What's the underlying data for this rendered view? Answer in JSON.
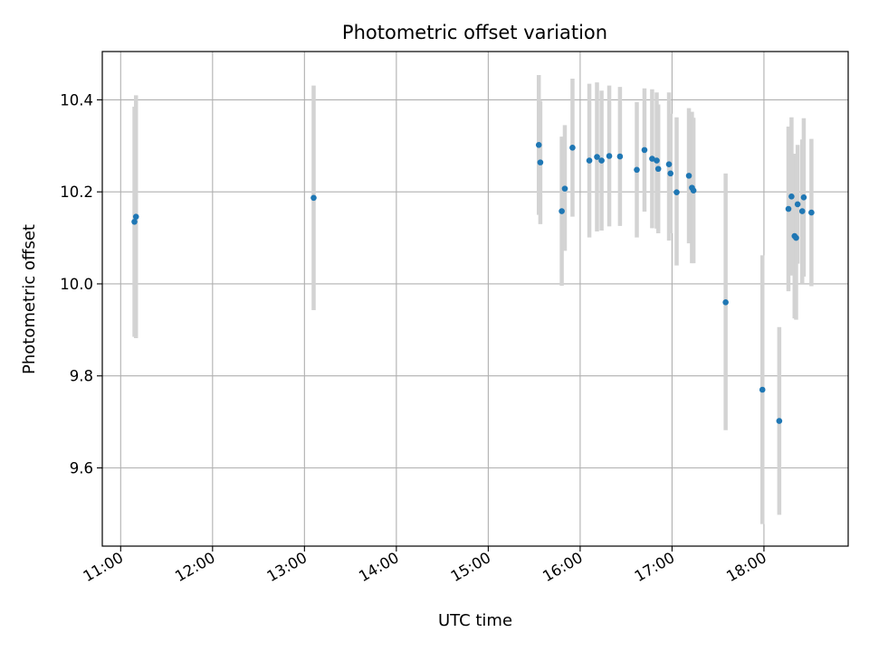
{
  "chart_data": {
    "type": "scatter",
    "title": "Photometric offset variation",
    "xlabel": "UTC time",
    "ylabel": "Photometric offset",
    "grid": true,
    "legend": "none",
    "xlim": [
      "10:48",
      "18:55"
    ],
    "ylim": [
      9.43,
      10.505
    ],
    "x_ticks": [
      "11:00",
      "12:00",
      "13:00",
      "14:00",
      "15:00",
      "16:00",
      "17:00",
      "18:00"
    ],
    "y_ticks": [
      9.6,
      9.8,
      10.0,
      10.2,
      10.4
    ],
    "y_tick_labels": [
      "9.6",
      "9.8",
      "10.0",
      "10.2",
      "10.4"
    ],
    "colors": {
      "points": "#1f77b4",
      "errorbars": "#d3d3d3",
      "grid": "#b0b0b0"
    },
    "points": [
      {
        "x": "11:09",
        "y": 10.135,
        "err_low": 9.885,
        "err_high": 10.385
      },
      {
        "x": "11:10",
        "y": 10.146,
        "err_low": 9.882,
        "err_high": 10.41
      },
      {
        "x": "13:06",
        "y": 10.187,
        "err_low": 9.943,
        "err_high": 10.431
      },
      {
        "x": "15:33",
        "y": 10.302,
        "err_low": 10.15,
        "err_high": 10.454
      },
      {
        "x": "15:34",
        "y": 10.264,
        "err_low": 10.13,
        "err_high": 10.398
      },
      {
        "x": "15:48",
        "y": 10.158,
        "err_low": 9.996,
        "err_high": 10.32
      },
      {
        "x": "15:50",
        "y": 10.207,
        "err_low": 10.072,
        "err_high": 10.345
      },
      {
        "x": "15:55",
        "y": 10.296,
        "err_low": 10.146,
        "err_high": 10.446
      },
      {
        "x": "16:06",
        "y": 10.268,
        "err_low": 10.101,
        "err_high": 10.435
      },
      {
        "x": "16:11",
        "y": 10.276,
        "err_low": 10.114,
        "err_high": 10.438
      },
      {
        "x": "16:14",
        "y": 10.268,
        "err_low": 10.116,
        "err_high": 10.42
      },
      {
        "x": "16:19",
        "y": 10.278,
        "err_low": 10.125,
        "err_high": 10.431
      },
      {
        "x": "16:26",
        "y": 10.277,
        "err_low": 10.126,
        "err_high": 10.428
      },
      {
        "x": "16:37",
        "y": 10.248,
        "err_low": 10.101,
        "err_high": 10.395
      },
      {
        "x": "16:42",
        "y": 10.291,
        "err_low": 10.157,
        "err_high": 10.425
      },
      {
        "x": "16:47",
        "y": 10.272,
        "err_low": 10.121,
        "err_high": 10.423
      },
      {
        "x": "16:50",
        "y": 10.268,
        "err_low": 10.12,
        "err_high": 10.416
      },
      {
        "x": "16:51",
        "y": 10.25,
        "err_low": 10.11,
        "err_high": 10.39
      },
      {
        "x": "16:58",
        "y": 10.26,
        "err_low": 10.094,
        "err_high": 10.416
      },
      {
        "x": "16:59",
        "y": 10.24,
        "err_low": 10.11,
        "err_high": 10.37
      },
      {
        "x": "17:03",
        "y": 10.199,
        "err_low": 10.04,
        "err_high": 10.362
      },
      {
        "x": "17:11",
        "y": 10.235,
        "err_low": 10.088,
        "err_high": 10.382
      },
      {
        "x": "17:13",
        "y": 10.209,
        "err_low": 10.045,
        "err_high": 10.374
      },
      {
        "x": "17:14",
        "y": 10.203,
        "err_low": 10.045,
        "err_high": 10.361
      },
      {
        "x": "17:35",
        "y": 9.96,
        "err_low": 9.682,
        "err_high": 10.24
      },
      {
        "x": "17:59",
        "y": 9.77,
        "err_low": 9.478,
        "err_high": 10.062
      },
      {
        "x": "18:10",
        "y": 9.702,
        "err_low": 9.498,
        "err_high": 9.906
      },
      {
        "x": "18:16",
        "y": 10.163,
        "err_low": 9.984,
        "err_high": 10.342
      },
      {
        "x": "18:18",
        "y": 10.19,
        "err_low": 10.018,
        "err_high": 10.362
      },
      {
        "x": "18:20",
        "y": 10.104,
        "err_low": 9.925,
        "err_high": 10.283
      },
      {
        "x": "18:21",
        "y": 10.1,
        "err_low": 9.922,
        "err_high": 10.278
      },
      {
        "x": "18:22",
        "y": 10.173,
        "err_low": 10.044,
        "err_high": 10.302
      },
      {
        "x": "18:25",
        "y": 10.158,
        "err_low": 10.002,
        "err_high": 10.314
      },
      {
        "x": "18:26",
        "y": 10.188,
        "err_low": 10.016,
        "err_high": 10.36
      },
      {
        "x": "18:31",
        "y": 10.155,
        "err_low": 9.995,
        "err_high": 10.315
      }
    ]
  }
}
